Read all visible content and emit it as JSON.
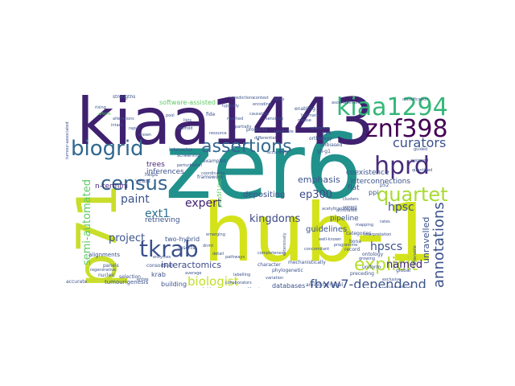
{
  "wordcloud": {
    "palette": [
      "#440154",
      "#3b528b",
      "#21918c",
      "#5ec962",
      "#fde725"
    ],
    "words": {
      "zer6": "zer6",
      "hub1": "hub-1",
      "kiaa1443": "kiaa1443",
      "p71": "p71",
      "kiaa1294": "kiaa1294",
      "znf398": "znf398",
      "biogrid": "biogrid",
      "assertions": "assertions",
      "hprd": "hprd",
      "census": "census",
      "tkrab": "tkrab",
      "quartet": "quartet",
      "curators": "curators",
      "explicit": "explicit",
      "annotations": "annotations",
      "fbxw7": "fbxw7-dependend",
      "biologist": "biologist",
      "kingdoms": "kingdoms",
      "hpscs": "hpscs",
      "hpsc": "hpsc",
      "ep300": "ep300",
      "expert": "expert",
      "paint": "paint",
      "ext1": "ext1",
      "named": "named",
      "semi": "semi-automated",
      "project": "project",
      "interactomics": "interactomics",
      "n_termini": "n-termini",
      "software": "software-assisted",
      "unravelled": "unravelled",
      "emphasis": "emphasis",
      "depositing": "depositing",
      "guidelines": "guidelines",
      "pipeline": "pipeline",
      "coexistence": "coexistence",
      "interconnections": "interconnections",
      "inferences": "inferences",
      "trees": "trees",
      "retrieving": "retrieving",
      "databases": "databases",
      "building": "building",
      "krab": "krab",
      "flat": "flat",
      "ppi": "ppi",
      "two_hybrid": "two-hybrid",
      "pou5f1": "pou5f1/oct4",
      "alignments": "alignments",
      "tumourigenesis": "tumourigenesis",
      "amino": "amino-terminal",
      "unidentified": "unidentified",
      "strengths": "strengths",
      "framework": "framework",
      "yeast": "yeast",
      "helps": "helps",
      "interactor": "interactor",
      "screening": "screening",
      "examples": "examples",
      "products": "products",
      "orthology": "orthology",
      "unbiased": "unbiased",
      "enabling": "enabling",
      "character": "character",
      "phylogenetic": "phylogenetic",
      "mechanistically": "mechanistically",
      "record": "record",
      "ontology": "ontology",
      "global": "global",
      "preceding": "preceding",
      "uniform": "uniform",
      "categories": "categories",
      "consortium": "consortium",
      "panels": "panels",
      "selection": "selection",
      "accurate": "accurate",
      "nucleic": "nucleic",
      "inserts": "inserts",
      "bona": "bona",
      "fide": "fide",
      "cys": "cys",
      "p52": "p52",
      "gli_g1": "gli-g1",
      "predictions": "predictions",
      "alterations": "alterations",
      "article": "article",
      "interpretation": "interpretation",
      "ascertainment": "ascertainment",
      "sensitive": "sensitive",
      "regenerative": "regenerative",
      "exclusive": "exclusive",
      "coordinates": "coordinates",
      "classification": "classification",
      "average": "average",
      "libraries": "libraries",
      "bridges": "bridges",
      "entire": "entire",
      "guided": "guided",
      "assigned": "assigned",
      "quantified": "quantified",
      "programme": "programme",
      "growing": "growing",
      "mapping": "mapping",
      "reference": "reference",
      "relies": "relies",
      "typically": "typically",
      "encoding": "encoding",
      "rising": "rising",
      "rapid": "rapid",
      "mouse": "mouse",
      "pool": "pool",
      "lists": "lists",
      "scaffold": "scaffold",
      "reached": "reached",
      "partially": "partially",
      "candidate": "candidate",
      "clusters": "clusters",
      "correct": "correct",
      "annotated": "annotated",
      "accurately": "accurately",
      "perturbation": "perturbation",
      "context": "context",
      "well_known": "well-known",
      "acetyltransferase": "acetyltransferase",
      "completeness": "completeness",
      "causative": "causative",
      "tumour_associated": "tumour-associated",
      "extensively": "extensively",
      "amenable": "amenable",
      "emerging": "emerging",
      "unclear": "unclear",
      "detail": "detail",
      "collaborators": "collaborators",
      "resource": "resource",
      "shown": "shown",
      "intact": "intact",
      "pathways": "pathways",
      "variation": "variation",
      "labelling": "labelling",
      "concomitant": "concomitant",
      "hallmark": "hallmark",
      "differential": "differential",
      "enzymes": "enzymes",
      "dnmt": "dnmt",
      "rates": "rates"
    }
  }
}
